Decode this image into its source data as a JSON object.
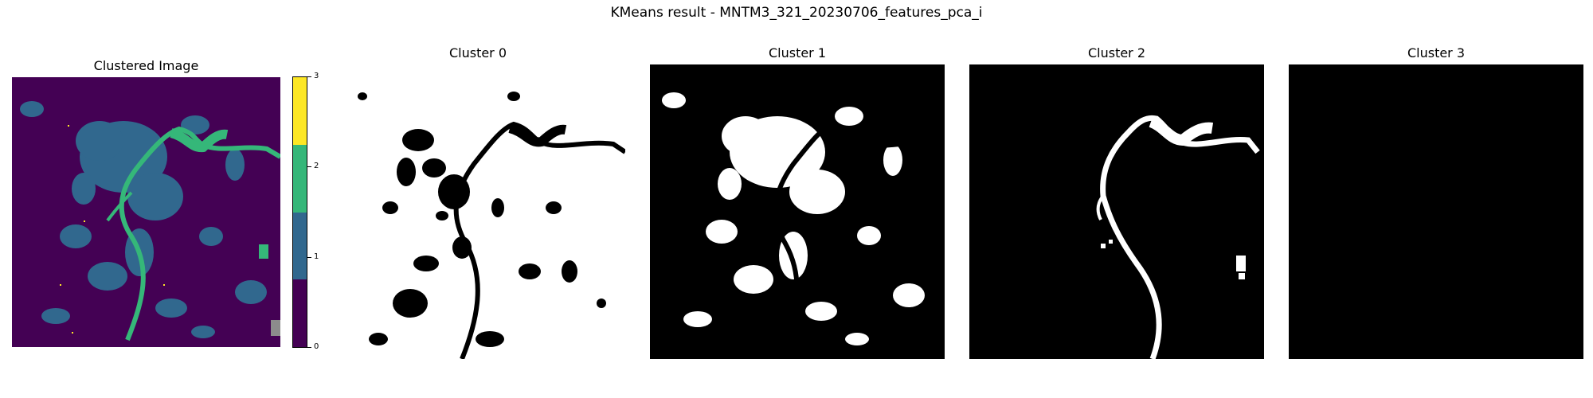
{
  "figure": {
    "title": "KMeans result - MNTM3_321_20230706_features_pca_i"
  },
  "panels": [
    {
      "title": "Clustered Image"
    },
    {
      "title": "Cluster 0"
    },
    {
      "title": "Cluster 1"
    },
    {
      "title": "Cluster 2"
    },
    {
      "title": "Cluster 3"
    }
  ],
  "colorbar": {
    "ticks": [
      "0",
      "1",
      "2",
      "3"
    ],
    "colors": [
      "#440154",
      "#31688e",
      "#35b779",
      "#fde725"
    ]
  },
  "colors": {
    "cluster0": "#440154",
    "cluster1": "#31688e",
    "cluster2": "#35b779",
    "cluster3": "#fde725",
    "mask_on": "#ffffff",
    "mask_off": "#000000"
  }
}
